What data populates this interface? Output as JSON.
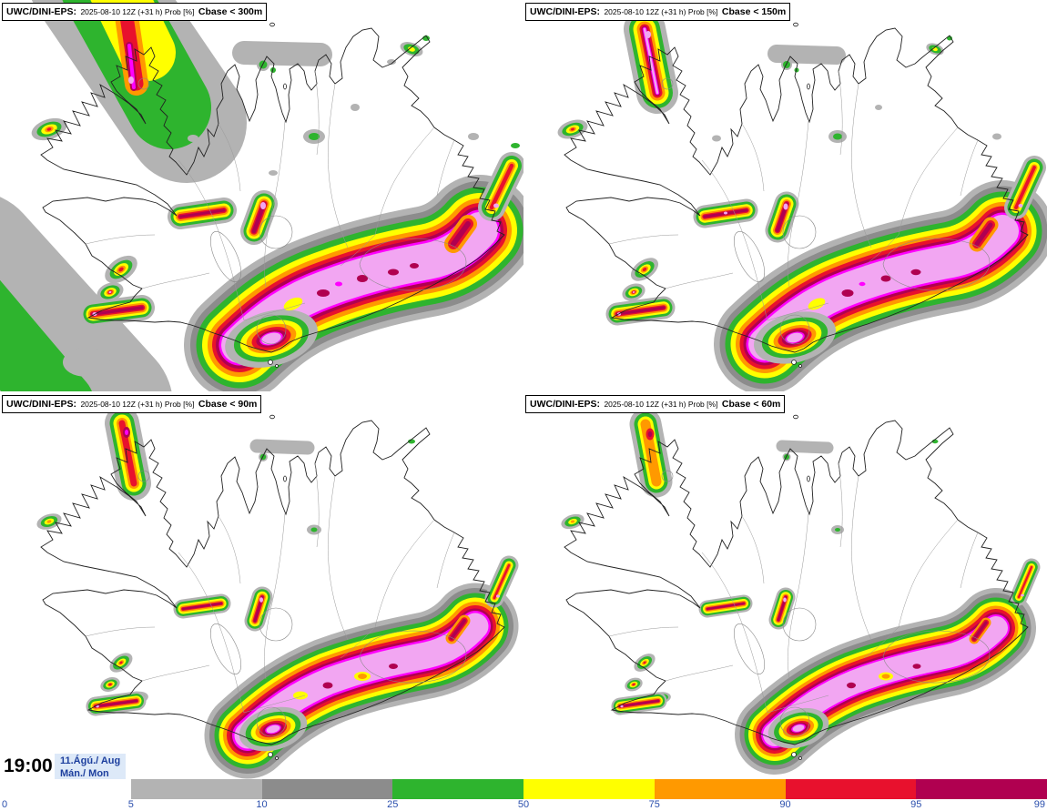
{
  "panels": [
    {
      "model": "UWC/DINI-EPS:",
      "run": "2025-08-10 12Z (+31 h) Prob [%]",
      "threshold": "Cbase < 300m"
    },
    {
      "model": "UWC/DINI-EPS:",
      "run": "2025-08-10 12Z (+31 h) Prob [%]",
      "threshold": "Cbase < 150m"
    },
    {
      "model": "UWC/DINI-EPS:",
      "run": "2025-08-10 12Z (+31 h) Prob [%]",
      "threshold": "Cbase < 90m"
    },
    {
      "model": "UWC/DINI-EPS:",
      "run": "2025-08-10 12Z (+31 h) Prob [%]",
      "threshold": "Cbase < 60m"
    }
  ],
  "footer": {
    "time": "19:00",
    "date_line1": "11.Ágú./ Aug",
    "date_line2": "Mán./ Mon"
  },
  "colorbar": {
    "ticks": [
      "0",
      "5",
      "10",
      "25",
      "50",
      "75",
      "90",
      "95",
      "99"
    ],
    "colors": [
      "#ffffff",
      "#b3b3b3",
      "#8c8c8c",
      "#2eb42e",
      "#ffff00",
      "#ff9900",
      "#e8112d",
      "#b00050"
    ]
  },
  "map_colors": {
    "gray_light": "#b3b3b3",
    "gray_dark": "#8c8c8c",
    "green": "#2eb42e",
    "yellow": "#ffff00",
    "orange": "#ff9900",
    "red": "#e8112d",
    "dark_red": "#b00050",
    "magenta": "#ff00ff",
    "pink": "#f2a6f2"
  }
}
